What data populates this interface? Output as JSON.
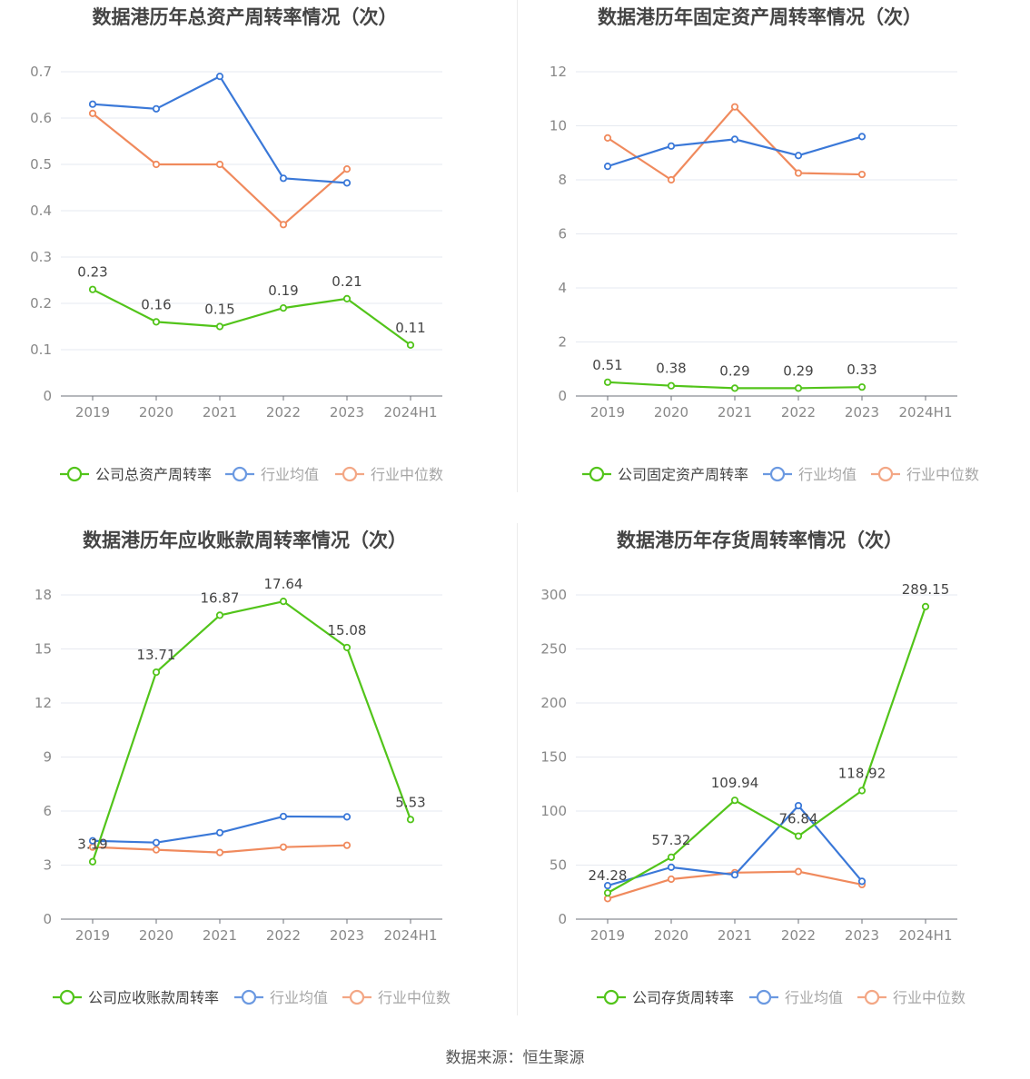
{
  "charts": [
    {
      "type": "line",
      "title": "数据港历年总资产周转率情况（次）",
      "categories": [
        "2019",
        "2020",
        "2021",
        "2022",
        "2023",
        "2024H1"
      ],
      "yticks": [
        "0",
        "0.1",
        "0.2",
        "0.3",
        "0.4",
        "0.5",
        "0.6",
        "0.7"
      ],
      "ylim": [
        0,
        0.7
      ],
      "series": [
        {
          "name": "公司总资产周转率",
          "color": "#52c41a",
          "values": [
            0.23,
            0.16,
            0.15,
            0.19,
            0.21,
            0.11
          ],
          "labels": [
            "0.23",
            "0.16",
            "0.15",
            "0.19",
            "0.21",
            "0.11"
          ]
        },
        {
          "name": "行业均值",
          "color": "#3a78d8",
          "values": [
            0.63,
            0.62,
            0.69,
            0.47,
            0.46,
            null
          ]
        },
        {
          "name": "行业中位数",
          "color": "#f08a5d",
          "values": [
            0.61,
            0.5,
            0.5,
            0.37,
            0.49,
            null
          ]
        }
      ]
    },
    {
      "type": "line",
      "title": "数据港历年固定资产周转率情况（次）",
      "categories": [
        "2019",
        "2020",
        "2021",
        "2022",
        "2023",
        "2024H1"
      ],
      "yticks": [
        "0",
        "2",
        "4",
        "6",
        "8",
        "10",
        "12"
      ],
      "ylim": [
        0,
        12
      ],
      "series": [
        {
          "name": "公司固定资产周转率",
          "color": "#52c41a",
          "values": [
            0.51,
            0.38,
            0.29,
            0.29,
            0.33,
            null
          ],
          "labels": [
            "0.51",
            "0.38",
            "0.29",
            "0.29",
            "0.33",
            ""
          ]
        },
        {
          "name": "行业均值",
          "color": "#3a78d8",
          "values": [
            8.5,
            9.25,
            9.5,
            8.9,
            9.6,
            null
          ]
        },
        {
          "name": "行业中位数",
          "color": "#f08a5d",
          "values": [
            9.55,
            8.0,
            10.7,
            8.25,
            8.2,
            null
          ]
        }
      ]
    },
    {
      "type": "line",
      "title": "数据港历年应收账款周转率情况（次）",
      "categories": [
        "2019",
        "2020",
        "2021",
        "2022",
        "2023",
        "2024H1"
      ],
      "yticks": [
        "0",
        "3",
        "6",
        "9",
        "12",
        "15",
        "18"
      ],
      "ylim": [
        0,
        18
      ],
      "series": [
        {
          "name": "公司应收账款周转率",
          "color": "#52c41a",
          "values": [
            3.19,
            13.71,
            16.87,
            17.64,
            15.08,
            5.53
          ],
          "labels": [
            "3.19",
            "13.71",
            "16.87",
            "17.64",
            "15.08",
            "5.53"
          ]
        },
        {
          "name": "行业均值",
          "color": "#3a78d8",
          "values": [
            4.35,
            4.25,
            4.8,
            5.7,
            5.68,
            null
          ]
        },
        {
          "name": "行业中位数",
          "color": "#f08a5d",
          "values": [
            4.0,
            3.85,
            3.7,
            4.0,
            4.1,
            null
          ]
        }
      ]
    },
    {
      "type": "line",
      "title": "数据港历年存货周转率情况（次）",
      "categories": [
        "2019",
        "2020",
        "2021",
        "2022",
        "2023",
        "2024H1"
      ],
      "yticks": [
        "0",
        "50",
        "100",
        "150",
        "200",
        "250",
        "300"
      ],
      "ylim": [
        0,
        300
      ],
      "series": [
        {
          "name": "公司存货周转率",
          "color": "#52c41a",
          "values": [
            24.28,
            57.32,
            109.94,
            76.84,
            118.92,
            289.15
          ],
          "labels": [
            "24.28",
            "57.32",
            "109.94",
            "76.84",
            "118.92",
            "289.15"
          ]
        },
        {
          "name": "行业均值",
          "color": "#3a78d8",
          "values": [
            31,
            48,
            41,
            105,
            35,
            null
          ]
        },
        {
          "name": "行业中位数",
          "color": "#f08a5d",
          "values": [
            19,
            37,
            43,
            44,
            32,
            null
          ]
        }
      ]
    }
  ],
  "source": "数据来源：恒生聚源"
}
